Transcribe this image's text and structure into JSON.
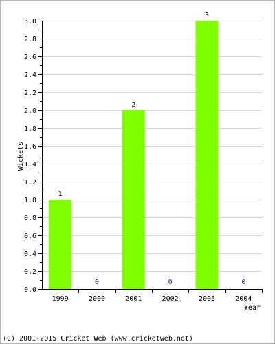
{
  "chart_data": {
    "type": "bar",
    "categories": [
      "1999",
      "2000",
      "2001",
      "2002",
      "2003",
      "2004"
    ],
    "values": [
      1,
      0,
      2,
      0,
      3,
      0
    ],
    "data_labels": [
      "1",
      "0",
      "2",
      "0",
      "3",
      "0"
    ],
    "title": "",
    "xlabel": "Year",
    "ylabel": "Wickets",
    "ylim": [
      0,
      3.0
    ],
    "yticks": [
      "0.0",
      "0.2",
      "0.4",
      "0.6",
      "0.8",
      "1.0",
      "1.2",
      "1.4",
      "1.6",
      "1.8",
      "2.0",
      "2.2",
      "2.4",
      "2.6",
      "2.8",
      "3.0"
    ],
    "grid": true,
    "bar_color": "#80ff00",
    "zero_label_color": "#1a1aa6"
  },
  "footer": "(C) 2001-2015 Cricket Web (www.cricketweb.net)"
}
